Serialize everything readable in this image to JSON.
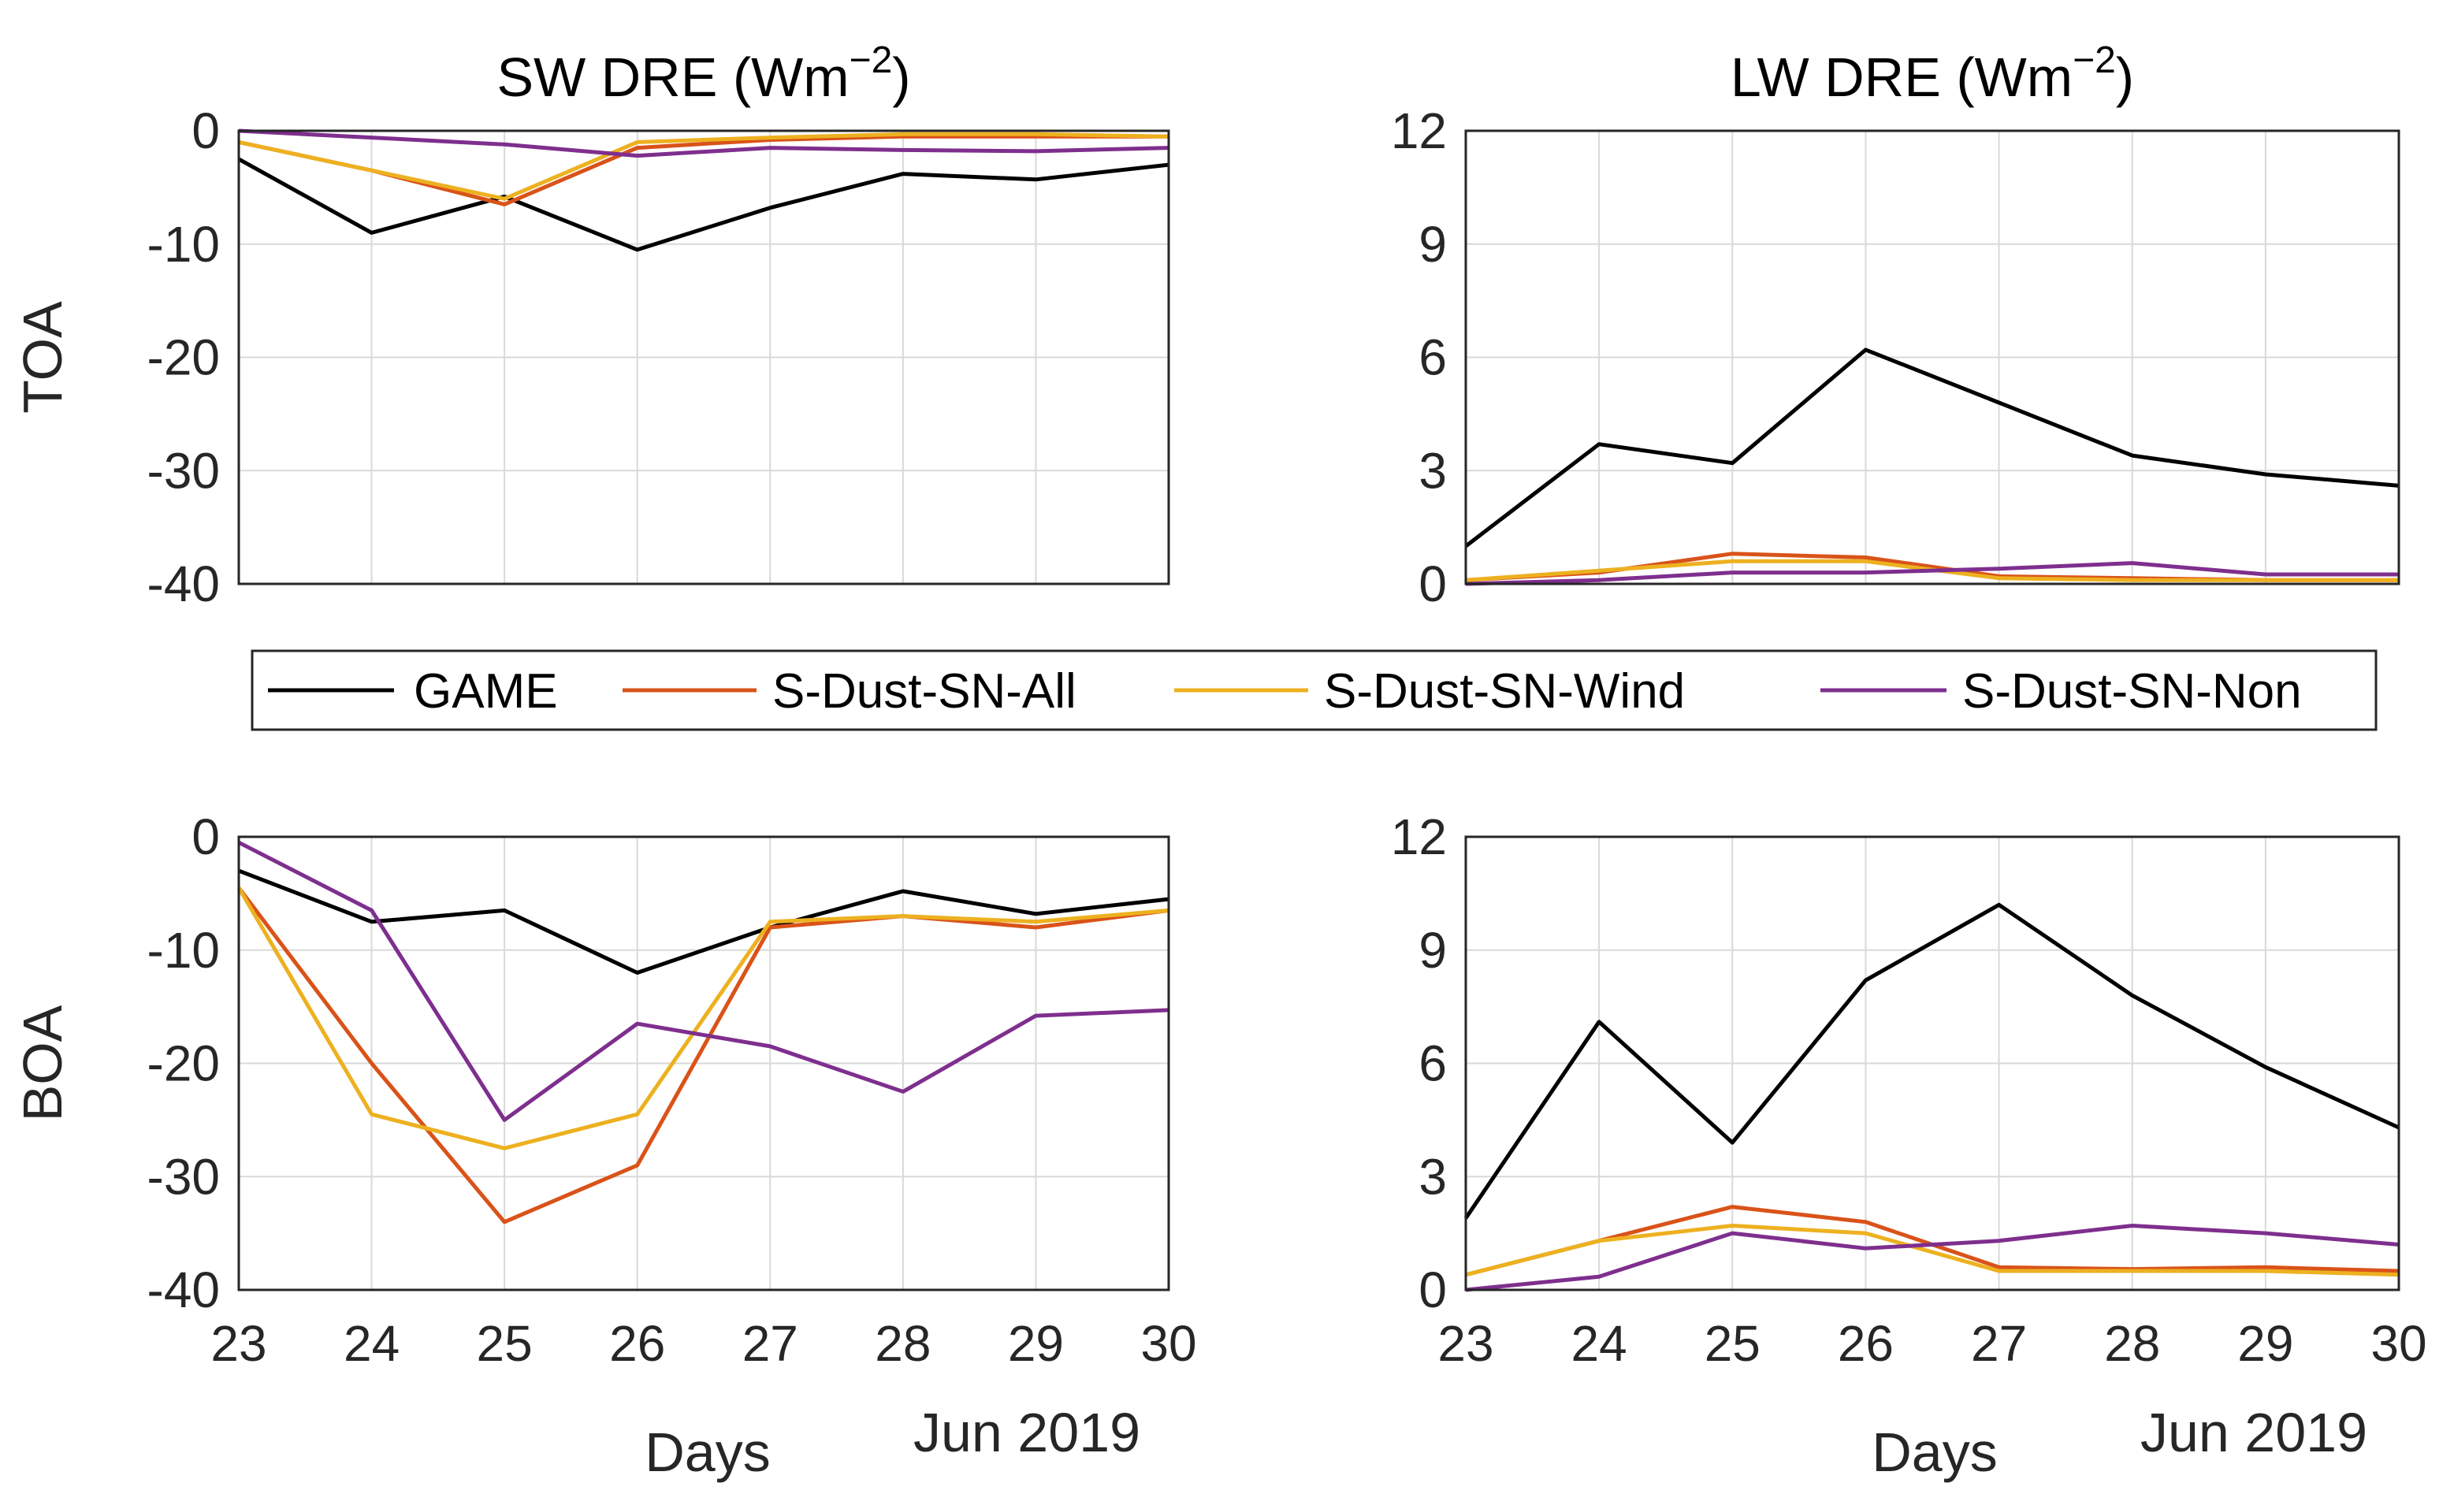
{
  "legend": [
    {
      "name": "GAME",
      "color": "#000000"
    },
    {
      "name": "S-Dust-SN-All",
      "color": "#D95319"
    },
    {
      "name": "S-Dust-SN-Wind",
      "color": "#EDB120"
    },
    {
      "name": "S-Dust-SN-Non",
      "color": "#7E2F8E"
    }
  ],
  "chart_data": [
    {
      "type": "line",
      "title": "SW DRE (Wm",
      "title_exp": "−2",
      "title_close": ")",
      "row_label": "TOA",
      "xlabel": "",
      "xlabel_date": "",
      "x": [
        23,
        24,
        25,
        26,
        27,
        28,
        29,
        30
      ],
      "ylim": [
        -40,
        0
      ],
      "yticks": [
        -40,
        -30,
        -20,
        -10,
        0
      ],
      "show_xticks": false,
      "series": [
        {
          "name": "GAME",
          "values": [
            -2.5,
            -9.0,
            -5.8,
            -10.5,
            -6.8,
            -3.8,
            -4.3,
            -3.0
          ]
        },
        {
          "name": "S-Dust-SN-All",
          "values": [
            -1.0,
            -3.5,
            -6.5,
            -1.5,
            -0.8,
            -0.5,
            -0.5,
            -0.5
          ]
        },
        {
          "name": "S-Dust-SN-Wind",
          "values": [
            -1.0,
            -3.5,
            -6.0,
            -1.0,
            -0.6,
            -0.3,
            -0.3,
            -0.5
          ]
        },
        {
          "name": "S-Dust-SN-Non",
          "values": [
            0.0,
            -0.6,
            -1.2,
            -2.2,
            -1.5,
            -1.7,
            -1.8,
            -1.5
          ]
        }
      ]
    },
    {
      "type": "line",
      "title": "LW DRE (Wm",
      "title_exp": "−2",
      "title_close": ")",
      "row_label": "",
      "xlabel": "",
      "xlabel_date": "",
      "x": [
        23,
        24,
        25,
        26,
        27,
        28,
        29,
        30
      ],
      "ylim": [
        0,
        12
      ],
      "yticks": [
        0,
        3,
        6,
        9,
        12
      ],
      "show_xticks": false,
      "series": [
        {
          "name": "GAME",
          "values": [
            1.0,
            3.7,
            3.2,
            6.2,
            4.8,
            3.4,
            2.9,
            2.6
          ]
        },
        {
          "name": "S-Dust-SN-All",
          "values": [
            0.1,
            0.3,
            0.8,
            0.7,
            0.2,
            0.15,
            0.1,
            0.1
          ]
        },
        {
          "name": "S-Dust-SN-Wind",
          "values": [
            0.1,
            0.35,
            0.6,
            0.6,
            0.15,
            0.1,
            0.1,
            0.1
          ]
        },
        {
          "name": "S-Dust-SN-Non",
          "values": [
            0.0,
            0.1,
            0.3,
            0.3,
            0.4,
            0.55,
            0.25,
            0.25
          ]
        }
      ]
    },
    {
      "type": "line",
      "title": "",
      "title_exp": "",
      "title_close": "",
      "row_label": "BOA",
      "xlabel": "Days",
      "xlabel_date": "Jun 2019",
      "x": [
        23,
        24,
        25,
        26,
        27,
        28,
        29,
        30
      ],
      "ylim": [
        -40,
        0
      ],
      "yticks": [
        -40,
        -30,
        -20,
        -10,
        0
      ],
      "show_xticks": true,
      "series": [
        {
          "name": "GAME",
          "values": [
            -3.0,
            -7.5,
            -6.5,
            -12.0,
            -8.0,
            -4.8,
            -6.8,
            -5.5
          ]
        },
        {
          "name": "S-Dust-SN-All",
          "values": [
            -4.5,
            -20.0,
            -34.0,
            -29.0,
            -8.0,
            -7.0,
            -8.0,
            -6.5
          ]
        },
        {
          "name": "S-Dust-SN-Wind",
          "values": [
            -4.5,
            -24.5,
            -27.5,
            -24.5,
            -7.5,
            -7.0,
            -7.5,
            -6.5
          ]
        },
        {
          "name": "S-Dust-SN-Non",
          "values": [
            -0.5,
            -6.5,
            -25.0,
            -16.5,
            -18.5,
            -22.5,
            -15.8,
            -15.3
          ]
        }
      ]
    },
    {
      "type": "line",
      "title": "",
      "title_exp": "",
      "title_close": "",
      "row_label": "",
      "xlabel": "Days",
      "xlabel_date": "Jun 2019",
      "x": [
        23,
        24,
        25,
        26,
        27,
        28,
        29,
        30
      ],
      "ylim": [
        0,
        12
      ],
      "yticks": [
        0,
        3,
        6,
        9,
        12
      ],
      "show_xticks": true,
      "series": [
        {
          "name": "GAME",
          "values": [
            1.9,
            7.1,
            3.9,
            8.2,
            10.2,
            7.8,
            5.9,
            4.3
          ]
        },
        {
          "name": "S-Dust-SN-All",
          "values": [
            0.4,
            1.3,
            2.2,
            1.8,
            0.6,
            0.55,
            0.6,
            0.5
          ]
        },
        {
          "name": "S-Dust-SN-Wind",
          "values": [
            0.4,
            1.3,
            1.7,
            1.5,
            0.5,
            0.5,
            0.5,
            0.4
          ]
        },
        {
          "name": "S-Dust-SN-Non",
          "values": [
            0.0,
            0.35,
            1.5,
            1.1,
            1.3,
            1.7,
            1.5,
            1.2
          ]
        }
      ]
    }
  ]
}
